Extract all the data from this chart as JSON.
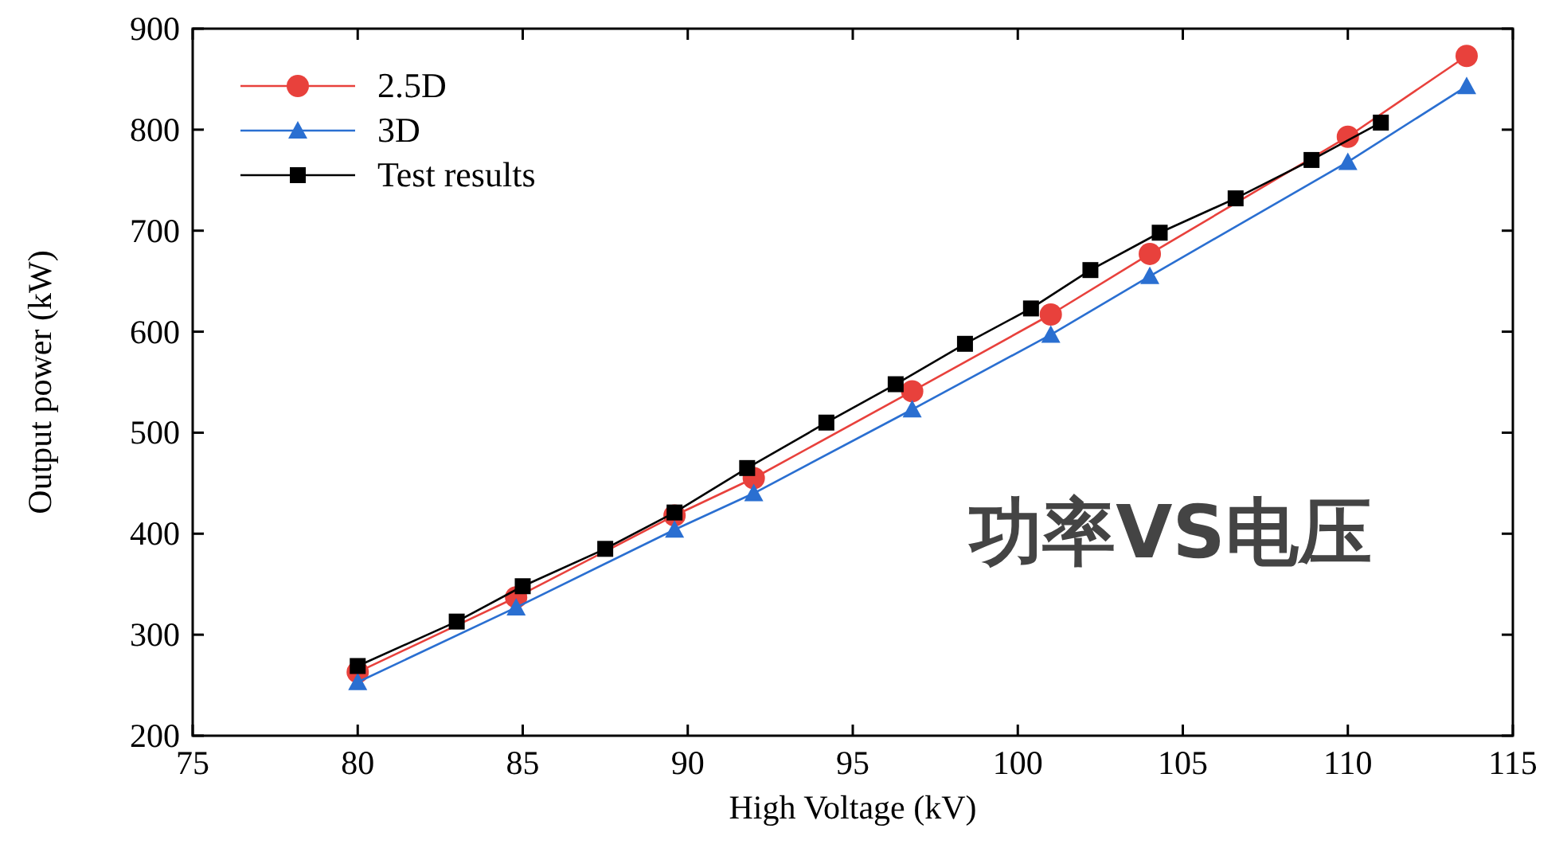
{
  "chart_data": {
    "type": "line",
    "xlabel": "High Voltage (kV)",
    "ylabel": "Output power (kW)",
    "xlim": [
      75,
      115
    ],
    "xticks": [
      75,
      80,
      85,
      90,
      95,
      100,
      105,
      110,
      115
    ],
    "ylim": [
      200,
      900
    ],
    "yticks": [
      200,
      300,
      400,
      500,
      600,
      700,
      800,
      900
    ],
    "grid": false,
    "legend": "top left",
    "annotations": [
      "功率VS电压"
    ],
    "series": [
      {
        "name": "2.5D",
        "color": "#e8413c",
        "marker": "circle",
        "x": [
          80,
          84.8,
          89.6,
          92,
          96.8,
          101,
          104,
          110,
          113.6
        ],
        "values": [
          263,
          337,
          418,
          455,
          541,
          617,
          677,
          793,
          873
        ]
      },
      {
        "name": "3D",
        "color": "#2a6fd1",
        "marker": "triangle",
        "x": [
          80,
          84.8,
          89.6,
          92,
          96.8,
          101,
          104,
          110,
          113.6
        ],
        "values": [
          253,
          327,
          404,
          440,
          523,
          597,
          655,
          768,
          843
        ]
      },
      {
        "name": "Test results",
        "color": "#000000",
        "marker": "square",
        "x": [
          80,
          83,
          85,
          87.5,
          89.6,
          91.8,
          94.2,
          96.3,
          98.4,
          100.4,
          102.2,
          104.3,
          106.6,
          108.9,
          111
        ],
        "values": [
          269,
          313,
          348,
          385,
          421,
          465,
          510,
          548,
          588,
          623,
          661,
          698,
          732,
          770,
          807
        ]
      }
    ]
  }
}
